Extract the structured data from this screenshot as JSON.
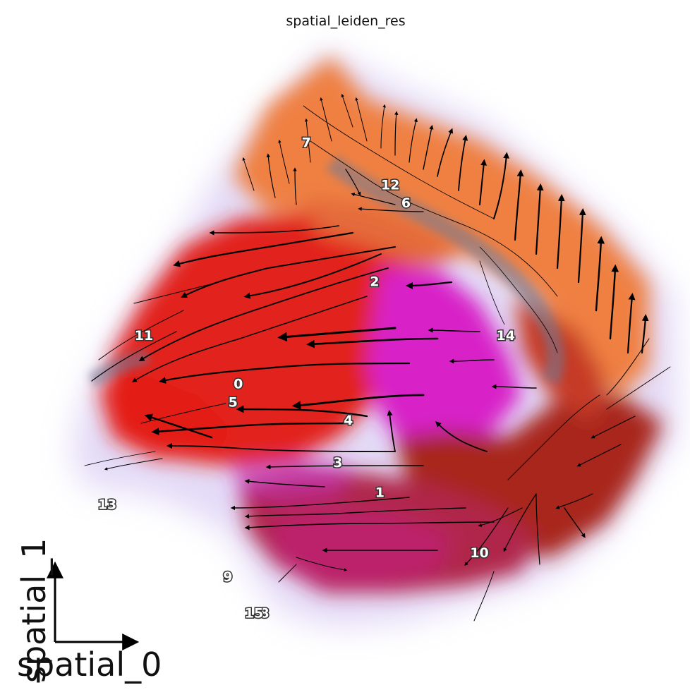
{
  "chart_data": {
    "type": "scatter",
    "title": "spatial_leiden_res",
    "xlabel": "spatial_0",
    "ylabel": "spatial_1",
    "overlay": "velocity streamlines",
    "grid": false,
    "legend": "on data",
    "clusters": [
      {
        "label": "0",
        "x": 4.0,
        "y": 5.0,
        "color": "#e0231c"
      },
      {
        "label": "1",
        "x": 6.7,
        "y": 3.2,
        "color": "#b8242a"
      },
      {
        "label": "2",
        "x": 6.6,
        "y": 6.7,
        "color": "#ec7a3c"
      },
      {
        "label": "3",
        "x": 5.9,
        "y": 3.7,
        "color": "#d02fb0"
      },
      {
        "label": "4",
        "x": 6.1,
        "y": 4.4,
        "color": "#e01fd8"
      },
      {
        "label": "5",
        "x": 3.9,
        "y": 4.7,
        "color": "#ea3b1c"
      },
      {
        "label": "6",
        "x": 7.2,
        "y": 8.0,
        "color": "#f08a48"
      },
      {
        "label": "7",
        "x": 5.3,
        "y": 9.0,
        "color": "#f07a3e"
      },
      {
        "label": "8",
        "x": 4.5,
        "y": 1.2,
        "color": "#c42c62"
      },
      {
        "label": "9",
        "x": 3.8,
        "y": 1.8,
        "color": "#d03a6c"
      },
      {
        "label": "10",
        "x": 8.6,
        "y": 2.2,
        "color": "#a82c24"
      },
      {
        "label": "11",
        "x": 2.2,
        "y": 5.8,
        "color": "#d82220"
      },
      {
        "label": "12",
        "x": 6.9,
        "y": 8.3,
        "color": "#ee8444"
      },
      {
        "label": "13",
        "x": 1.5,
        "y": 3.0,
        "color": "#d44040"
      },
      {
        "label": "14",
        "x": 9.1,
        "y": 5.8,
        "color": "#ea7c40"
      },
      {
        "label": "15",
        "x": 4.3,
        "y": 1.2,
        "color": "#c05a6a"
      }
    ]
  },
  "colors": {
    "background": "#ffffff",
    "halo": "#c9b8ee",
    "river": "#7a7e96",
    "streamline": "#000000"
  }
}
